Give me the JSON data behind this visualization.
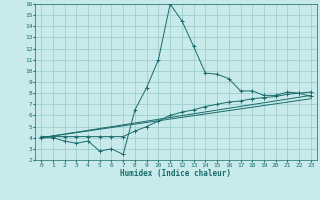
{
  "xlabel": "Humidex (Indice chaleur)",
  "background_color": "#c8eaea",
  "grid_color": "#96c8c8",
  "line_color": "#1a6b6b",
  "xlim": [
    -0.5,
    23.5
  ],
  "ylim": [
    2,
    16
  ],
  "xticks": [
    0,
    1,
    2,
    3,
    4,
    5,
    6,
    7,
    8,
    9,
    10,
    11,
    12,
    13,
    14,
    15,
    16,
    17,
    18,
    19,
    20,
    21,
    22,
    23
  ],
  "yticks": [
    2,
    3,
    4,
    5,
    6,
    7,
    8,
    9,
    10,
    11,
    12,
    13,
    14,
    15,
    16
  ],
  "line1_x": [
    0,
    1,
    2,
    3,
    4,
    5,
    6,
    7,
    8,
    9,
    10,
    11,
    12,
    13,
    14,
    15,
    16,
    17,
    18,
    19,
    20,
    21,
    22,
    23
  ],
  "line1_y": [
    4.0,
    4.0,
    3.7,
    3.5,
    3.7,
    2.8,
    3.0,
    2.5,
    6.5,
    8.5,
    11.0,
    16.0,
    14.5,
    12.2,
    9.8,
    9.7,
    9.3,
    8.2,
    8.2,
    7.8,
    7.8,
    8.1,
    8.0,
    7.7
  ],
  "line2_x": [
    0,
    1,
    2,
    3,
    4,
    5,
    6,
    7,
    8,
    9,
    10,
    11,
    12,
    13,
    14,
    15,
    16,
    17,
    18,
    19,
    20,
    21,
    22,
    23
  ],
  "line2_y": [
    4.1,
    4.1,
    4.1,
    4.1,
    4.1,
    4.1,
    4.1,
    4.1,
    4.6,
    5.0,
    5.5,
    6.0,
    6.3,
    6.5,
    6.8,
    7.0,
    7.2,
    7.3,
    7.5,
    7.6,
    7.7,
    7.9,
    8.0,
    8.1
  ],
  "line3_x": [
    0,
    23
  ],
  "line3_y": [
    4.0,
    7.8
  ],
  "line4_x": [
    0,
    23
  ],
  "line4_y": [
    4.0,
    7.5
  ]
}
